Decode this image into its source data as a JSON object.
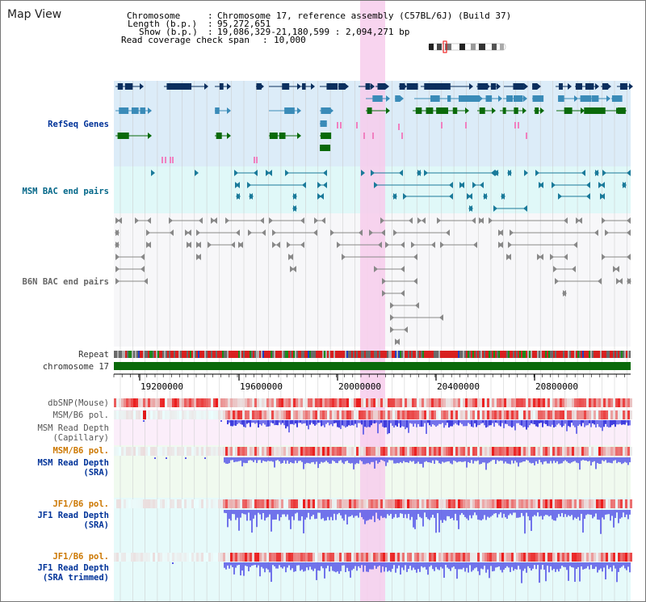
{
  "view": {
    "title": "Map View"
  },
  "info": {
    "chromosome_label": "Chromosome",
    "chromosome_value": "Chromosome 17, reference assembly (C57BL/6J) (Build 37)",
    "length_label": "Length (b.p.)",
    "length_value": "95,272,651",
    "show_label": "Show (b.p.)",
    "show_value": "19,086,329-21,180,599 : 2,094,271 bp",
    "coverage_label": "Read coverage check span",
    "coverage_value": "10,000"
  },
  "tracks": {
    "refseq": "RefSeq Genes",
    "msm_bac": "MSM BAC end pairs",
    "b6n_bac": "B6N BAC end pairs",
    "repeat": "Repeat",
    "chromosome": "chromosome 17",
    "dbsnp": "dbSNP(Mouse)",
    "msm_b6_pol_1": "MSM/B6 pol.",
    "msm_depth_cap": "MSM Read Depth\n(Capillary)",
    "msm_b6_pol_2": "MSM/B6 pol.",
    "msm_depth_sra": "MSM Read Depth\n(SRA)",
    "jf1_b6_pol_1": "JF1/B6 pol.",
    "jf1_depth_sra": "JF1 Read Depth\n(SRA)",
    "jf1_b6_pol_2": "JF1/B6 pol.",
    "jf1_depth_trim": "JF1 Read Depth\n(SRA trimmed)"
  },
  "axis": {
    "ticks": [
      "19200000",
      "19600000",
      "20000000",
      "20400000",
      "20800000"
    ]
  },
  "colors": {
    "highlight": "#f7ccec",
    "refseq_bg": "#dcecf8",
    "msm_bg": "#e0f8f8",
    "gene_dark": "#0b2f5e",
    "gene_mid": "#3a8bb8",
    "gene_green": "#0a6a0a",
    "snp_red": "#e01818",
    "depth_blue": "#5a5ae8",
    "chromosome_green": "#0a6a0a"
  }
}
